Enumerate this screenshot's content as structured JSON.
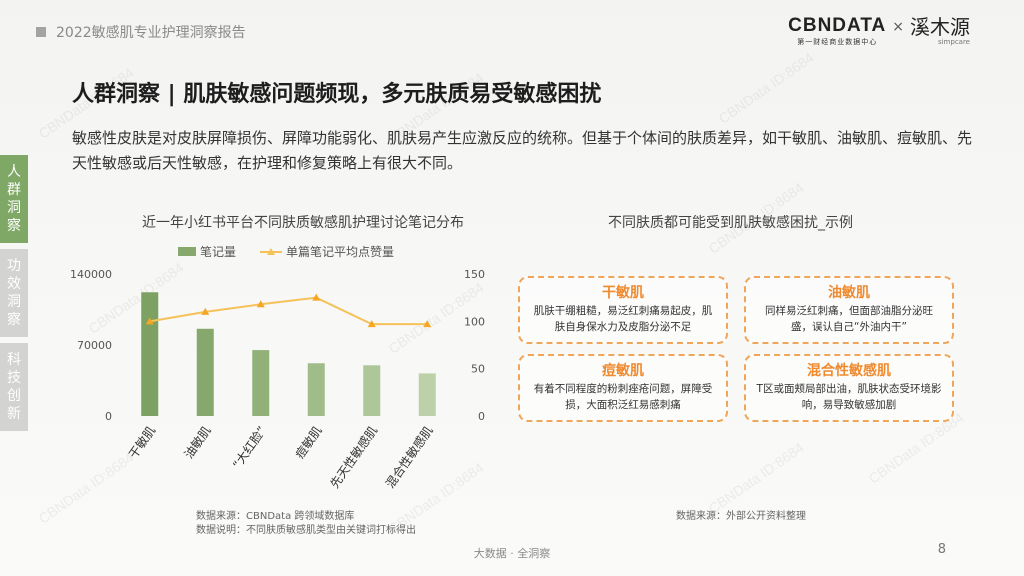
{
  "header": {
    "report_title": "2022敏感肌专业护理洞察报告",
    "logo_cbn": "CBNDATA",
    "logo_cbn_sub": "第一财经商业数据中心",
    "logo_x": "×",
    "logo_xmy": "溪木源",
    "logo_xmy_sub": "simpcare"
  },
  "watermark": "CBNData ID:8684",
  "heading": "人群洞察 | 肌肤敏感问题频现，多元肤质易受敏感困扰",
  "intro": "敏感性皮肤是对皮肤屏障损伤、屏障功能弱化、肌肤易产生应激反应的统称。但基于个体间的肤质差异，如干敏肌、油敏肌、痘敏肌、先天性敏感或后天性敏感，在护理和修复策略上有很大不同。",
  "side_nav": [
    {
      "label": "人群洞察",
      "active": true
    },
    {
      "label": "功效洞察",
      "active": false
    },
    {
      "label": "科技创新",
      "active": false
    }
  ],
  "left_section_title": "近一年小红书平台不同肤质敏感肌护理讨论笔记分布",
  "right_section_title": "不同肤质都可能受到肌肤敏感困扰_示例",
  "chart_data": {
    "type": "bar",
    "title": "近一年小红书平台不同肤质敏感肌护理讨论笔记分布",
    "categories": [
      "干敏肌",
      "油敏肌",
      "“大红脸”",
      "痘敏肌",
      "先天性敏感肌",
      "混合性敏感肌"
    ],
    "series": [
      {
        "name": "笔记量",
        "type": "bar",
        "axis": "left",
        "color": "#86a86c",
        "values": [
          122000,
          86000,
          65000,
          52000,
          50000,
          42000
        ]
      },
      {
        "name": "单篇笔记平均点赞量",
        "type": "line",
        "axis": "right",
        "color": "#f5c25a",
        "values": [
          100,
          110,
          118,
          125,
          97,
          97
        ]
      }
    ],
    "y_left": {
      "min": 0,
      "max": 140000,
      "ticks": [
        "0",
        "70000",
        "140000"
      ]
    },
    "y_right": {
      "min": 0,
      "max": 150,
      "ticks": [
        "0",
        "50",
        "100",
        "150"
      ]
    },
    "xlabel": "",
    "ylabel": "",
    "legend": "top",
    "grid": false
  },
  "cards": [
    {
      "title": "干敏肌",
      "desc": "肌肤干绷粗糙，易泛红刺痛易起皮，肌肤自身保水力及皮脂分泌不足"
    },
    {
      "title": "油敏肌",
      "desc": "同样易泛红刺痛，但面部油脂分泌旺盛，误认自己“外油内干”"
    },
    {
      "title": "痘敏肌",
      "desc": "有着不同程度的粉刺痤疮问题，屏障受损，大面积泛红易感刺痛"
    },
    {
      "title": "混合性敏感肌",
      "desc": "T区或面颊局部出油，肌肤状态受环境影响，易导致敏感加剧"
    }
  ],
  "source_left": {
    "line1": "数据来源：CBNData 跨领域数据库",
    "line2": "数据说明：不同肤质敏感肌类型由关键词打标得出"
  },
  "source_right": "数据来源：外部公开资料整理",
  "footer": "大数据 · 全洞察",
  "page_number": "8"
}
